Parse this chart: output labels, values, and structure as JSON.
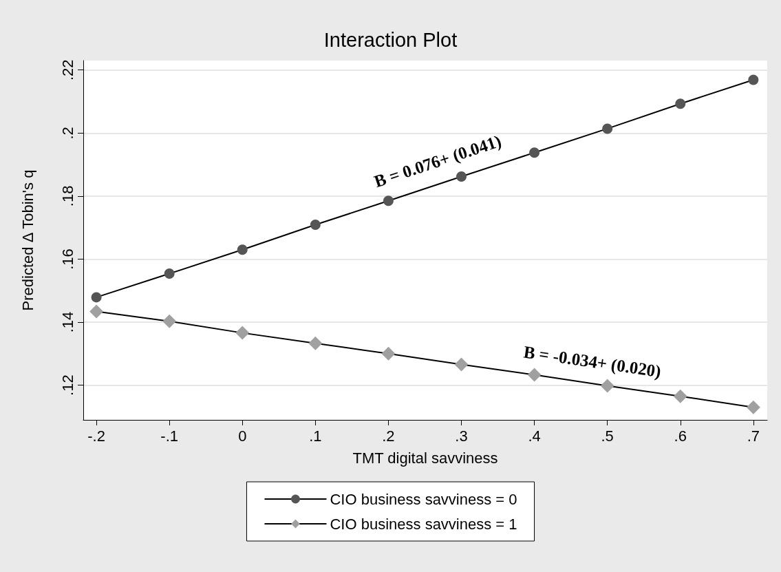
{
  "chart_data": {
    "type": "line",
    "title": "Interaction Plot",
    "xlabel": "TMT digital savviness",
    "ylabel": "Predicted Δ Tobin's q",
    "x": [
      -0.2,
      -0.1,
      0,
      0.1,
      0.2,
      0.3,
      0.4,
      0.5,
      0.6,
      0.7
    ],
    "series": [
      {
        "name": "CIO business savviness = 0",
        "color": "#555555",
        "marker": "circle",
        "values": [
          0.1479,
          0.1554,
          0.163,
          0.1709,
          0.1785,
          0.1862,
          0.1938,
          0.2014,
          0.2093,
          0.2169
        ]
      },
      {
        "name": "CIO business savviness = 1",
        "color": "#a0a0a0",
        "marker": "diamond",
        "values": [
          0.1434,
          0.1403,
          0.1366,
          0.1333,
          0.13,
          0.1266,
          0.1233,
          0.1198,
          0.1165,
          0.113
        ]
      }
    ],
    "xlim": [
      -0.218,
      0.719
    ],
    "xticks": [
      {
        "value": -0.2,
        "label": "-.2"
      },
      {
        "value": -0.1,
        "label": "-.1"
      },
      0,
      {
        "value": 0.1,
        "label": ".1"
      },
      {
        "value": 0.2,
        "label": ".2"
      },
      {
        "value": 0.3,
        "label": ".3"
      },
      {
        "value": 0.4,
        "label": ".4"
      },
      {
        "value": 0.5,
        "label": ".5"
      },
      {
        "value": 0.6,
        "label": ".6"
      },
      {
        "value": 0.7,
        "label": ".7"
      }
    ],
    "ylim": [
      0.109,
      0.223
    ],
    "yticks": [
      {
        "value": 0.12,
        "label": ".12"
      },
      {
        "value": 0.14,
        "label": ".14"
      },
      {
        "value": 0.16,
        "label": ".16"
      },
      {
        "value": 0.18,
        "label": ".18"
      },
      {
        "value": 0.2,
        "label": ".2"
      },
      {
        "value": 0.22,
        "label": ".22"
      }
    ],
    "grid": "y",
    "legend": "bottom",
    "line_style": "solid",
    "annotations": [
      "B = 0.076+ (0.041)",
      "B = -0.034+ (0.020)"
    ]
  }
}
